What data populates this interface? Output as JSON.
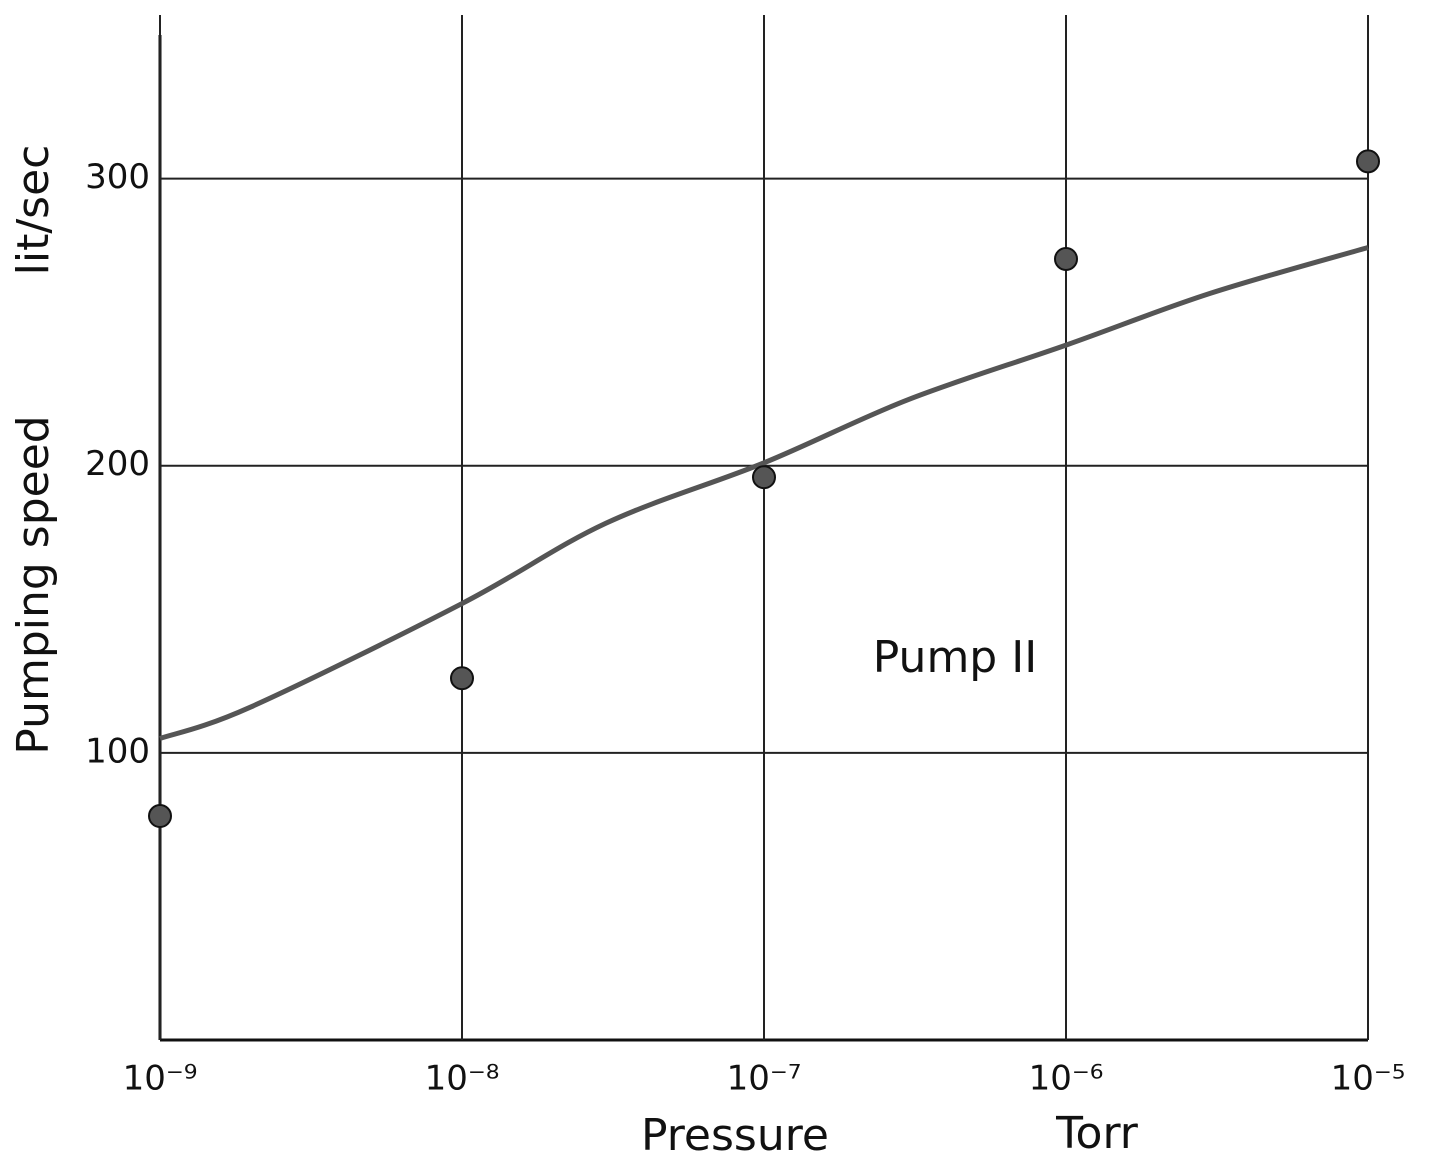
{
  "chart_data": {
    "type": "scatter",
    "y_label": "Pumping speed",
    "y_unit": "lit/sec",
    "x_label": "Pressure",
    "x_unit": "Torr",
    "annotation": "Pump II",
    "x": [
      1e-09,
      1e-08,
      1e-07,
      1e-06,
      1e-05
    ],
    "values": [
      78,
      126,
      196,
      272,
      306
    ],
    "color": "#555555",
    "curve": {
      "x": [
        1e-09,
        2e-09,
        1e-08,
        3e-08,
        1e-07,
        3e-07,
        1e-06,
        3e-06,
        1e-05
      ],
      "values": [
        105,
        116,
        152,
        180,
        201,
        223,
        242,
        260,
        276
      ],
      "color": "#555555"
    },
    "xlog": true,
    "xlim": [
      1e-09,
      1e-05
    ],
    "ylim": [
      0,
      350
    ],
    "xticks": [
      {
        "value": 1e-09,
        "label": "10⁻⁹"
      },
      {
        "value": 1e-08,
        "label": "10⁻⁸"
      },
      {
        "value": 1e-07,
        "label": "10⁻⁷"
      },
      {
        "value": 1e-06,
        "label": "10⁻⁶"
      },
      {
        "value": 1e-05,
        "label": "10⁻⁵"
      }
    ],
    "yticks": [
      100,
      200,
      300
    ],
    "grid": true
  }
}
